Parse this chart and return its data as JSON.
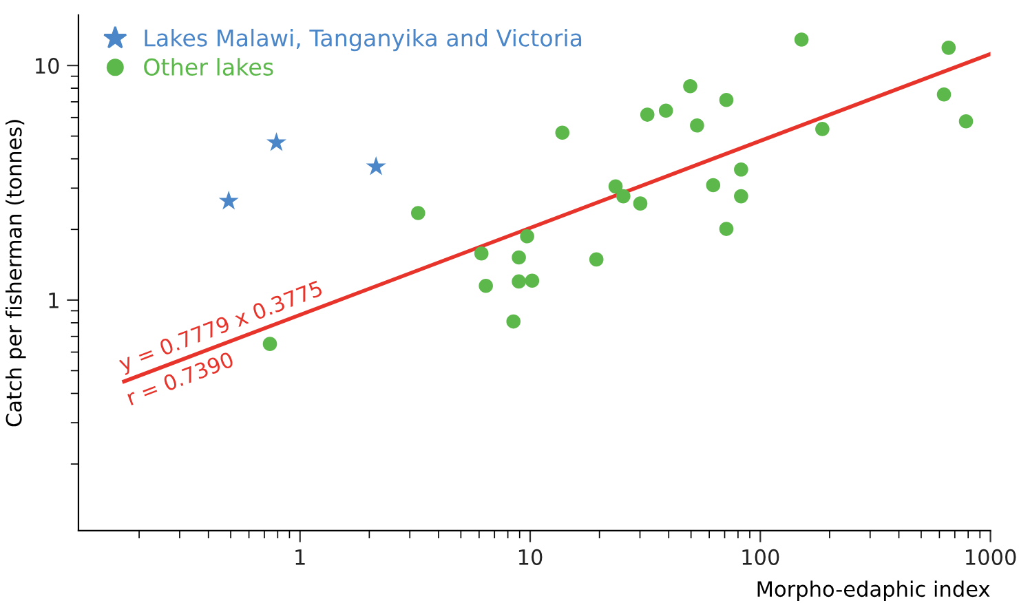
{
  "chart_data": {
    "type": "scatter",
    "xlabel": "Morpho-edaphic index",
    "ylabel": "Catch per fisherman (tonnes)",
    "log": "xy",
    "xlim": [
      0.109,
      1000
    ],
    "ylim": [
      0.104,
      16.4
    ],
    "xticks": [
      1,
      10,
      100,
      1000
    ],
    "yticks": [
      1,
      10
    ],
    "grid": false,
    "legend": "top left",
    "series": [
      {
        "name": "Lakes Malawi, Tanganyika and Victoria",
        "color": "#4a86c8",
        "marker": "star",
        "x": [
          0.49,
          0.79,
          2.14
        ],
        "values": [
          2.64,
          4.69,
          3.7
        ]
      },
      {
        "name": "Other lakes",
        "color": "#5cb84a",
        "marker": "circle",
        "x": [
          3.26,
          6.14,
          6.42,
          8.93,
          8.93,
          10.2,
          8.46,
          0.74,
          9.7,
          13.8,
          19.4,
          23.5,
          25.4,
          30.1,
          32.3,
          38.9,
          49.6,
          53.1,
          62.4,
          71.2,
          71.2,
          82.5,
          82.5,
          151,
          186,
          628,
          658,
          783
        ],
        "values": [
          2.35,
          1.58,
          1.15,
          1.52,
          1.2,
          1.21,
          0.81,
          0.65,
          1.87,
          5.17,
          1.49,
          3.05,
          2.77,
          2.58,
          6.17,
          6.42,
          8.16,
          5.55,
          3.09,
          7.13,
          2.01,
          3.6,
          2.77,
          12.9,
          5.36,
          7.52,
          11.9,
          5.78
        ]
      },
      {
        "type": "line",
        "color": "#e8332a",
        "x": [
          0.172,
          1000
        ],
        "values": [
          0.45,
          11.2
        ]
      }
    ],
    "annotations": [
      "y = 0.7779 x 0.3775",
      "r = 0.7390"
    ]
  }
}
